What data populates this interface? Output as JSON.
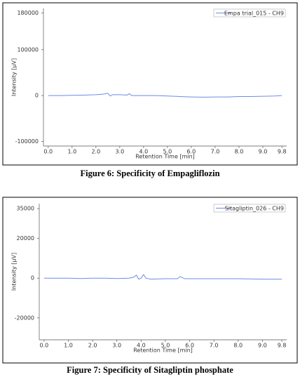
{
  "chart_data": [
    {
      "type": "line",
      "caption": "Figure 6: Specificity of Empagliflozin",
      "ylabel": "Intensity [µV]",
      "xlabel": "Retention Time [min]",
      "legend": "top-right",
      "xlim": [
        -0.2,
        10.0
      ],
      "ylim": [
        -110000,
        190000
      ],
      "yticks": [
        -100000,
        0,
        100000,
        180000
      ],
      "xticks": [
        {
          "value": 0,
          "label": "0.0"
        },
        {
          "value": 1,
          "label": "1.0"
        },
        {
          "value": 2,
          "label": "2.0"
        },
        {
          "value": 3,
          "label": "3.0"
        },
        {
          "value": 4,
          "label": "4.0"
        },
        {
          "value": 5,
          "label": "5.0"
        },
        {
          "value": 6,
          "label": "6.0"
        },
        {
          "value": 7,
          "label": "7.0"
        },
        {
          "value": 8,
          "label": "8.0"
        },
        {
          "value": 9,
          "label": "9.0"
        },
        {
          "value": 9.8,
          "label": "9.8"
        }
      ],
      "series": [
        {
          "name": "Empa trial_015 - CH9",
          "color": "#6f8be6",
          "x": [
            0,
            0.5,
            1,
            1.5,
            2,
            2.3,
            2.5,
            2.6,
            2.7,
            3,
            3.3,
            3.4,
            3.5,
            4,
            4.5,
            5,
            5.5,
            6,
            6.5,
            7,
            7.5,
            8,
            8.5,
            9,
            9.5,
            9.8
          ],
          "values": [
            0,
            0,
            500,
            1000,
            2000,
            3000,
            5000,
            -1000,
            2000,
            2000,
            1000,
            4000,
            0,
            0,
            0,
            -1000,
            -2000,
            -3000,
            -3500,
            -3000,
            -3000,
            -2000,
            -2000,
            -1500,
            -1000,
            0
          ]
        }
      ]
    },
    {
      "type": "line",
      "caption": "Figure 7: Specificity of Sitagliptin phosphate",
      "ylabel": "Intensity [µV]",
      "xlabel": "Retention Time [min]",
      "legend": "top-right",
      "xlim": [
        -0.2,
        10.0
      ],
      "ylim": [
        -31000,
        37500
      ],
      "yticks": [
        -20000,
        0,
        20000,
        35000
      ],
      "xticks": [
        {
          "value": 0,
          "label": "0.0"
        },
        {
          "value": 1,
          "label": "1.0"
        },
        {
          "value": 2,
          "label": "2.0"
        },
        {
          "value": 3,
          "label": "3.0"
        },
        {
          "value": 4,
          "label": "4.0"
        },
        {
          "value": 5,
          "label": "5.0"
        },
        {
          "value": 6,
          "label": "6.0"
        },
        {
          "value": 7,
          "label": "7.0"
        },
        {
          "value": 8,
          "label": "8.0"
        },
        {
          "value": 9,
          "label": "9.0"
        },
        {
          "value": 9.8,
          "label": "9.8"
        }
      ],
      "series": [
        {
          "name": "Sitagliptin_026 - CH9",
          "color": "#6f8be6",
          "x": [
            0,
            0.5,
            1,
            1.5,
            2,
            2.5,
            3,
            3.5,
            3.7,
            3.8,
            3.9,
            4.0,
            4.1,
            4.2,
            4.4,
            5,
            5.5,
            5.6,
            5.8,
            6,
            7,
            8,
            9,
            9.5,
            9.8
          ],
          "values": [
            0,
            0,
            0,
            -200,
            0,
            0,
            -200,
            0,
            500,
            1500,
            -500,
            0,
            1800,
            0,
            -500,
            -300,
            -300,
            800,
            -300,
            -300,
            -300,
            -300,
            -500,
            -500,
            -500
          ]
        }
      ]
    }
  ]
}
